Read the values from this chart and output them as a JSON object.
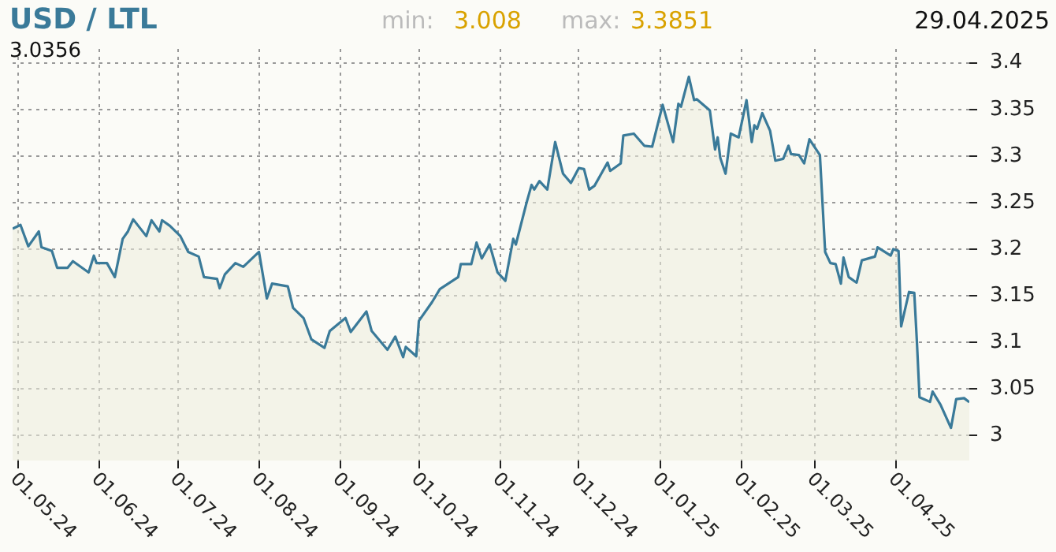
{
  "chart_data": {
    "type": "area",
    "title": "USD / LTL",
    "annotations": [
      "min:",
      "3.008",
      "max:",
      "3.3851",
      "29.04.2025",
      "3.0356"
    ],
    "x": [
      "2024-04-29",
      "2024-05-02",
      "2024-05-05",
      "2024-05-09",
      "2024-05-10",
      "2024-05-14",
      "2024-05-16",
      "2024-05-20",
      "2024-05-22",
      "2024-05-28",
      "2024-05-30",
      "2024-05-31",
      "2024-06-04",
      "2024-06-07",
      "2024-06-10",
      "2024-06-12",
      "2024-06-14",
      "2024-06-19",
      "2024-06-21",
      "2024-06-24",
      "2024-06-25",
      "2024-06-28",
      "2024-07-02",
      "2024-07-05",
      "2024-07-09",
      "2024-07-11",
      "2024-07-16",
      "2024-07-17",
      "2024-07-19",
      "2024-07-23",
      "2024-07-26",
      "2024-08-01",
      "2024-08-04",
      "2024-08-06",
      "2024-08-12",
      "2024-08-14",
      "2024-08-18",
      "2024-08-21",
      "2024-08-26",
      "2024-08-28",
      "2024-09-03",
      "2024-09-05",
      "2024-09-11",
      "2024-09-13",
      "2024-09-19",
      "2024-09-22",
      "2024-09-25",
      "2024-09-26",
      "2024-09-30",
      "2024-10-01",
      "2024-10-06",
      "2024-10-09",
      "2024-10-16",
      "2024-10-17",
      "2024-10-21",
      "2024-10-23",
      "2024-10-25",
      "2024-10-28",
      "2024-10-31",
      "2024-11-03",
      "2024-11-06",
      "2024-11-07",
      "2024-11-08",
      "2024-11-11",
      "2024-11-13",
      "2024-11-14",
      "2024-11-16",
      "2024-11-19",
      "2024-11-22",
      "2024-11-25",
      "2024-11-28",
      "2024-12-01",
      "2024-12-03",
      "2024-12-05",
      "2024-12-07",
      "2024-12-12",
      "2024-12-13",
      "2024-12-17",
      "2024-12-18",
      "2024-12-22",
      "2024-12-26",
      "2024-12-29",
      "2025-01-02",
      "2025-01-06",
      "2025-01-08",
      "2025-01-09",
      "2025-01-12",
      "2025-01-14",
      "2025-01-15",
      "2025-01-20",
      "2025-01-22",
      "2025-01-23",
      "2025-01-24",
      "2025-01-26",
      "2025-01-28",
      "2025-01-31",
      "2025-02-03",
      "2025-02-05",
      "2025-02-06",
      "2025-02-07",
      "2025-02-09",
      "2025-02-12",
      "2025-02-14",
      "2025-02-17",
      "2025-02-19",
      "2025-02-20",
      "2025-02-23",
      "2025-02-25",
      "2025-02-27",
      "2025-03-03",
      "2025-03-05",
      "2025-03-07",
      "2025-03-09",
      "2025-03-11",
      "2025-03-12",
      "2025-03-14",
      "2025-03-17",
      "2025-03-19",
      "2025-03-24",
      "2025-03-25",
      "2025-03-30",
      "2025-03-31",
      "2025-04-02",
      "2025-04-03",
      "2025-04-06",
      "2025-04-08",
      "2025-04-09",
      "2025-04-10",
      "2025-04-14",
      "2025-04-15",
      "2025-04-18",
      "2025-04-22",
      "2025-04-24",
      "2025-04-27",
      "2025-04-29"
    ],
    "series": [
      {
        "color": "#3a7a99",
        "values": [
          3.222,
          3.226,
          3.203,
          3.219,
          3.202,
          3.198,
          3.18,
          3.18,
          3.187,
          3.175,
          3.193,
          3.185,
          3.185,
          3.17,
          3.211,
          3.219,
          3.232,
          3.214,
          3.231,
          3.219,
          3.231,
          3.225,
          3.214,
          3.197,
          3.192,
          3.17,
          3.168,
          3.158,
          3.173,
          3.185,
          3.181,
          3.197,
          3.147,
          3.163,
          3.16,
          3.137,
          3.126,
          3.103,
          3.094,
          3.112,
          3.126,
          3.111,
          3.133,
          3.112,
          3.092,
          3.106,
          3.084,
          3.095,
          3.085,
          3.123,
          3.143,
          3.157,
          3.17,
          3.184,
          3.184,
          3.207,
          3.19,
          3.205,
          3.175,
          3.166,
          3.211,
          3.205,
          3.216,
          3.249,
          3.269,
          3.264,
          3.273,
          3.264,
          3.315,
          3.281,
          3.271,
          3.287,
          3.286,
          3.264,
          3.268,
          3.293,
          3.284,
          3.292,
          3.322,
          3.324,
          3.311,
          3.31,
          3.355,
          3.315,
          3.356,
          3.353,
          3.3851,
          3.36,
          3.361,
          3.349,
          3.307,
          3.32,
          3.298,
          3.281,
          3.324,
          3.32,
          3.36,
          3.315,
          3.333,
          3.329,
          3.346,
          3.327,
          3.295,
          3.297,
          3.311,
          3.302,
          3.301,
          3.292,
          3.318,
          3.301,
          3.197,
          3.185,
          3.184,
          3.163,
          3.191,
          3.17,
          3.164,
          3.188,
          3.192,
          3.202,
          3.193,
          3.2,
          3.198,
          3.117,
          3.154,
          3.153,
          3.101,
          3.041,
          3.036,
          3.047,
          3.033,
          3.008,
          3.039,
          3.04,
          3.0356
        ]
      }
    ],
    "xlim": [
      "2024-04-29",
      "2025-04-29"
    ],
    "xticks": [
      {
        "value": "2024-05-01",
        "label": "01.05.24"
      },
      {
        "value": "2024-06-01",
        "label": "01.06.24"
      },
      {
        "value": "2024-07-01",
        "label": "01.07.24"
      },
      {
        "value": "2024-08-01",
        "label": "01.08.24"
      },
      {
        "value": "2024-09-01",
        "label": "01.09.24"
      },
      {
        "value": "2024-10-01",
        "label": "01.10.24"
      },
      {
        "value": "2024-11-01",
        "label": "01.11.24"
      },
      {
        "value": "2024-12-01",
        "label": "01.12.24"
      },
      {
        "value": "2025-01-01",
        "label": "01.01.25"
      },
      {
        "value": "2025-02-01",
        "label": "01.02.25"
      },
      {
        "value": "2025-03-01",
        "label": "01.03.25"
      },
      {
        "value": "2025-04-01",
        "label": "01.04.25"
      }
    ],
    "ylim": [
      2.973,
      3.415
    ],
    "yticks": [
      3,
      3.05,
      3.1,
      3.15,
      3.2,
      3.25,
      3.3,
      3.35,
      3.4
    ],
    "grid": true
  }
}
